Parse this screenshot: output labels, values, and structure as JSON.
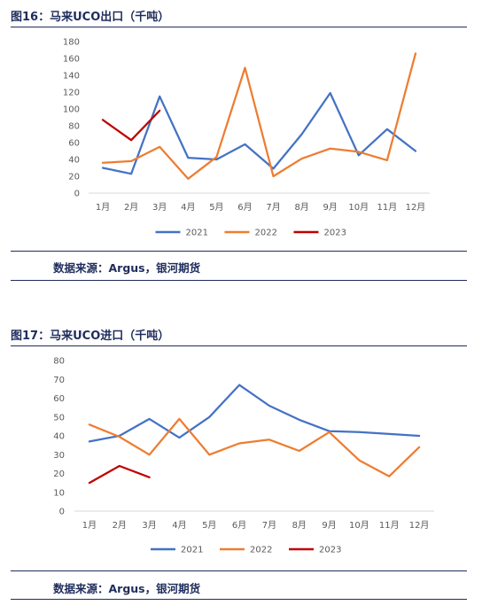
{
  "charts": [
    {
      "figure_title": "图16：马来UCO出口（千吨）",
      "source": "数据来源：Argus，银河期货"
    },
    {
      "figure_title": "图17：马来UCO进口（千吨）",
      "source": "数据来源：Argus，银河期货"
    }
  ],
  "chart_data": [
    {
      "type": "line",
      "title": "",
      "xlabel": "",
      "ylabel": "",
      "categories": [
        "1月",
        "2月",
        "3月",
        "4月",
        "5月",
        "6月",
        "7月",
        "8月",
        "9月",
        "10月",
        "11月",
        "12月"
      ],
      "ylim": [
        0,
        180
      ],
      "yticks": [
        0,
        20,
        40,
        60,
        80,
        100,
        120,
        140,
        160,
        180
      ],
      "grid": false,
      "legend_position": "bottom",
      "series": [
        {
          "name": "2021",
          "color": "#4472C4",
          "values": [
            30,
            23,
            115,
            42,
            40,
            58,
            29,
            70,
            119,
            45,
            76,
            50
          ]
        },
        {
          "name": "2022",
          "color": "#ED7D31",
          "values": [
            36,
            38,
            55,
            17,
            43,
            149,
            20,
            41,
            53,
            49,
            39,
            166
          ]
        },
        {
          "name": "2023",
          "color": "#C00000",
          "values": [
            87,
            63,
            98,
            null,
            null,
            null,
            null,
            null,
            null,
            null,
            null,
            null
          ]
        }
      ]
    },
    {
      "type": "line",
      "title": "",
      "xlabel": "",
      "ylabel": "",
      "categories": [
        "1月",
        "2月",
        "3月",
        "4月",
        "5月",
        "6月",
        "7月",
        "8月",
        "9月",
        "10月",
        "11月",
        "12月"
      ],
      "ylim": [
        0,
        80
      ],
      "yticks": [
        0,
        10,
        20,
        30,
        40,
        50,
        60,
        70,
        80
      ],
      "grid": false,
      "legend_position": "bottom",
      "series": [
        {
          "name": "2021",
          "color": "#4472C4",
          "values": [
            37,
            40,
            49,
            39,
            50,
            67,
            56,
            48.5,
            42.5,
            42,
            41,
            40
          ]
        },
        {
          "name": "2022",
          "color": "#ED7D31",
          "values": [
            46,
            39.5,
            30,
            49,
            30,
            36,
            38,
            32,
            42,
            27,
            18.5,
            34
          ]
        },
        {
          "name": "2023",
          "color": "#C00000",
          "values": [
            15,
            24,
            18,
            null,
            null,
            null,
            null,
            null,
            null,
            null,
            null,
            null
          ]
        }
      ]
    }
  ]
}
